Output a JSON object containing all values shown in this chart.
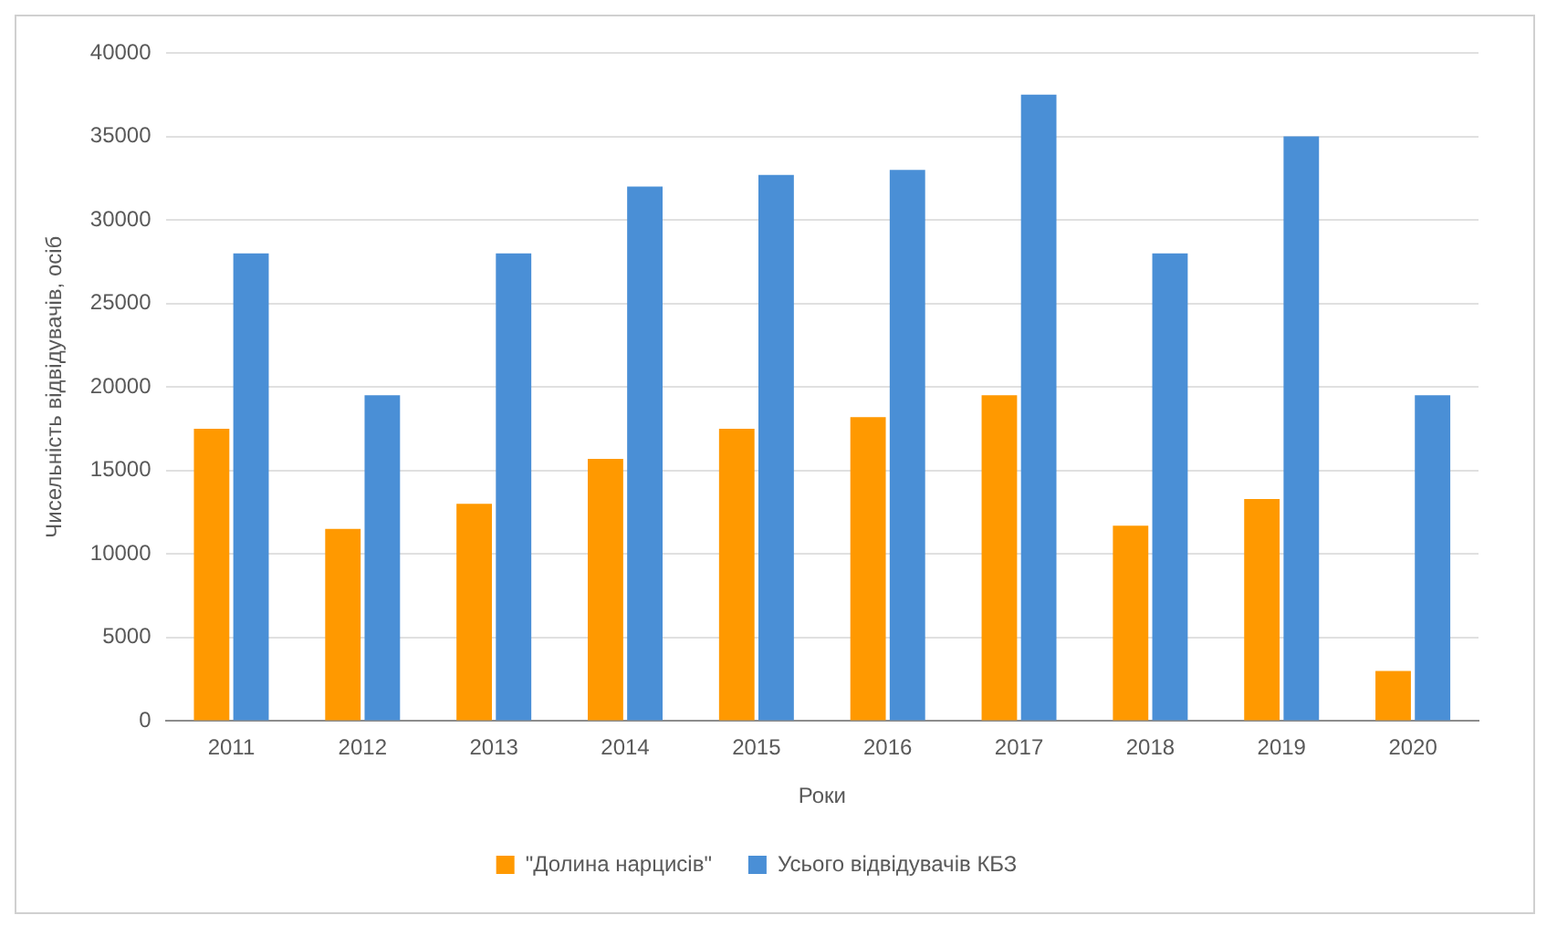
{
  "chart_data": {
    "type": "bar",
    "xlabel": "Роки",
    "ylabel": "Чисельність відвідувачів, осіб",
    "categories": [
      "2011",
      "2012",
      "2013",
      "2014",
      "2015",
      "2016",
      "2017",
      "2018",
      "2019",
      "2020"
    ],
    "series": [
      {
        "name": "\"Долина нарцисів\"",
        "color": "#ff9900",
        "values": [
          17500,
          11500,
          13000,
          15700,
          17500,
          18200,
          19500,
          11700,
          13300,
          3000
        ]
      },
      {
        "name": "Усього відвідувачів КБЗ",
        "color": "#4a8fd6",
        "values": [
          28000,
          19500,
          28000,
          32000,
          32700,
          33000,
          37500,
          28000,
          35000,
          19500
        ]
      }
    ],
    "ylim": [
      0,
      40000
    ],
    "yticks": [
      0,
      5000,
      10000,
      15000,
      20000,
      25000,
      30000,
      35000,
      40000
    ],
    "grid": "y",
    "legend": "bottom"
  }
}
